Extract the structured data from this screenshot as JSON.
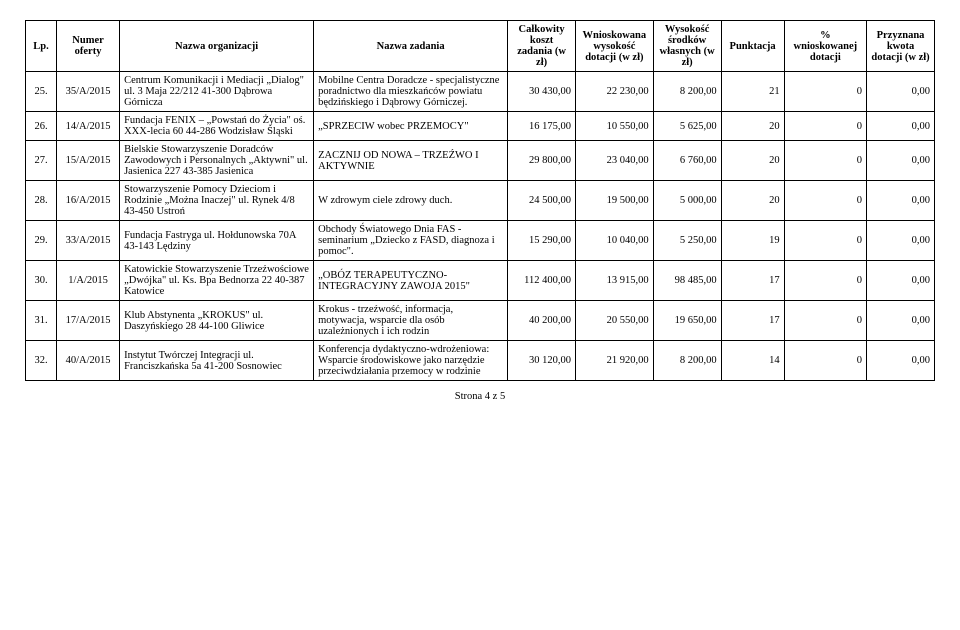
{
  "headers": {
    "lp": "Lp.",
    "numer": "Numer oferty",
    "org": "Nazwa organizacji",
    "zadanie": "Nazwa zadania",
    "koszt": "Całkowity koszt zadania (w zł)",
    "wnioskowana": "Wnioskowana wysokość dotacji (w zł)",
    "wysokosc": "Wysokość środków własnych (w zł)",
    "punktacja": "Punktacja",
    "procent": "% wnioskowanej dotacji",
    "przyznana": "Przyznana kwota dotacji (w zł)"
  },
  "rows": [
    {
      "lp": "25.",
      "nr": "35/A/2015",
      "org": "Centrum Komunikacji i Mediacji „Dialog\" ul. 3 Maja 22/212 41-300 Dąbrowa Górnicza",
      "task": "Mobilne Centra Doradcze - specjalistyczne poradnictwo dla mieszkańców powiatu będzińskiego i Dąbrowy Górniczej.",
      "koszt": "30 430,00",
      "wn": "22 230,00",
      "wys": "8 200,00",
      "pun": "21",
      "pct": "0",
      "prz": "0,00"
    },
    {
      "lp": "26.",
      "nr": "14/A/2015",
      "org": "Fundacja FENIX – „Powstań do Życia\" oś. XXX-lecia 60 44-286 Wodzisław Śląski",
      "task": "„SPRZECIW wobec PRZEMOCY\"",
      "koszt": "16 175,00",
      "wn": "10 550,00",
      "wys": "5 625,00",
      "pun": "20",
      "pct": "0",
      "prz": "0,00"
    },
    {
      "lp": "27.",
      "nr": "15/A/2015",
      "org": "Bielskie Stowarzyszenie Doradców Zawodowych i Personalnych „Aktywni\" ul. Jasienica 227 43-385 Jasienica",
      "task": "ZACZNIJ OD NOWA – TRZEŹWO I AKTYWNIE",
      "koszt": "29 800,00",
      "wn": "23 040,00",
      "wys": "6 760,00",
      "pun": "20",
      "pct": "0",
      "prz": "0,00"
    },
    {
      "lp": "28.",
      "nr": "16/A/2015",
      "org": "Stowarzyszenie Pomocy Dzieciom i Rodzinie „Można Inaczej\" ul. Rynek 4/8 43-450 Ustroń",
      "task": "W zdrowym ciele zdrowy duch.",
      "koszt": "24 500,00",
      "wn": "19 500,00",
      "wys": "5 000,00",
      "pun": "20",
      "pct": "0",
      "prz": "0,00"
    },
    {
      "lp": "29.",
      "nr": "33/A/2015",
      "org": "Fundacja Fastryga ul. Hołdunowska 70A 43-143 Lędziny",
      "task": "Obchody Światowego Dnia FAS - seminarium „Dziecko z FASD, diagnoza i pomoc\".",
      "koszt": "15 290,00",
      "wn": "10 040,00",
      "wys": "5 250,00",
      "pun": "19",
      "pct": "0",
      "prz": "0,00"
    },
    {
      "lp": "30.",
      "nr": "1/A/2015",
      "org": "Katowickie Stowarzyszenie Trzeźwościowe „Dwójka\" ul. Ks. Bpa Bednorza 22 40-387 Katowice",
      "task": "„OBÓZ TERAPEUTYCZNO-INTEGRACYJNY ZAWOJA 2015\"",
      "koszt": "112 400,00",
      "wn": "13 915,00",
      "wys": "98 485,00",
      "pun": "17",
      "pct": "0",
      "prz": "0,00"
    },
    {
      "lp": "31.",
      "nr": "17/A/2015",
      "org": "Klub Abstynenta „KROKUS\" ul. Daszyńskiego 28 44-100 Gliwice",
      "task": "Krokus - trzeźwość, informacja, motywacja, wsparcie dla osób uzależnionych i ich rodzin",
      "koszt": "40 200,00",
      "wn": "20 550,00",
      "wys": "19 650,00",
      "pun": "17",
      "pct": "0",
      "prz": "0,00"
    },
    {
      "lp": "32.",
      "nr": "40/A/2015",
      "org": "Instytut Twórczej Integracji ul. Franciszkańska 5a 41-200 Sosnowiec",
      "task": "Konferencja dydaktyczno-wdrożeniowa: Wsparcie środowiskowe jako narzędzie przeciwdziałania przemocy w rodzinie",
      "koszt": "30 120,00",
      "wn": "21 920,00",
      "wys": "8 200,00",
      "pun": "14",
      "pct": "0",
      "prz": "0,00"
    }
  ],
  "footer": "Strona 4 z 5"
}
